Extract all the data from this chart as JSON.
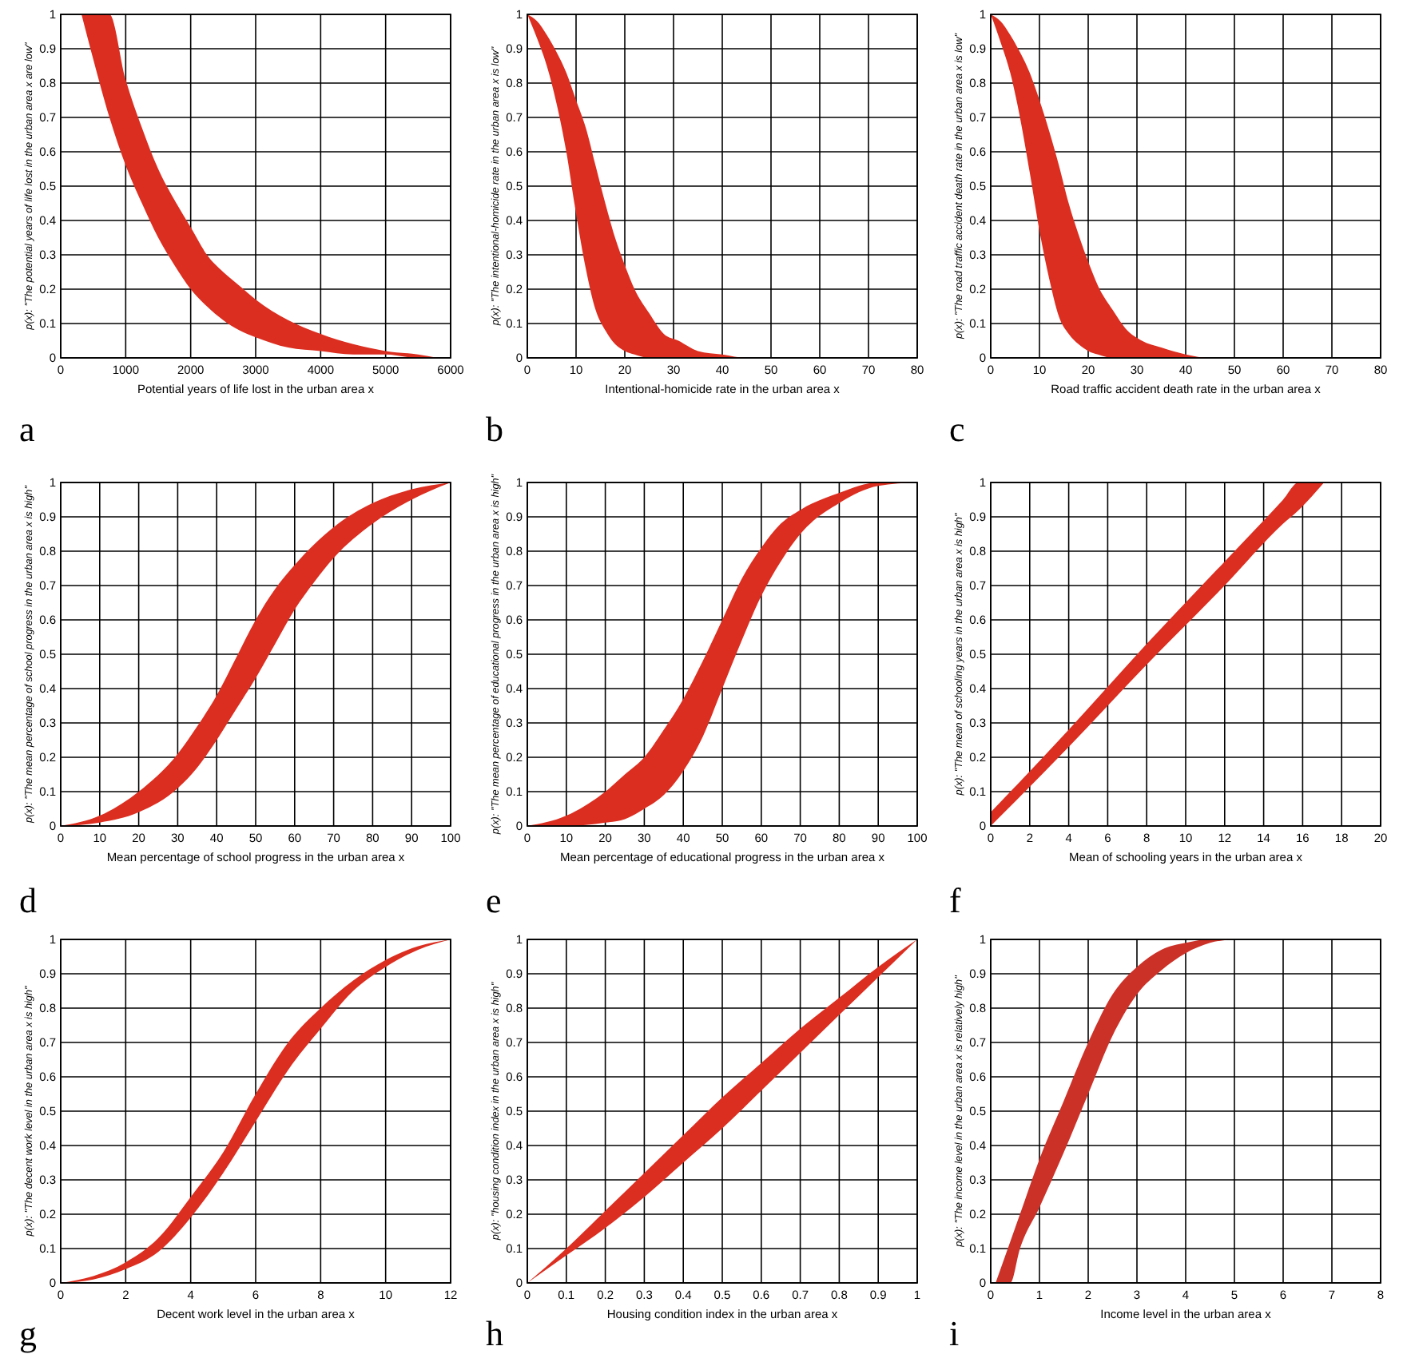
{
  "chart_data": [
    {
      "type": "line",
      "xlabel": "Potential years of life lost in the urban area x",
      "ylabel": "p(x): \"The potential years of life lost in the urban area x are low\"",
      "annotations": [
        "a"
      ],
      "xlim": [
        0,
        6000
      ],
      "xticks": [
        0,
        1000,
        2000,
        3000,
        4000,
        5000,
        6000
      ],
      "ylim": [
        0,
        1
      ],
      "yticks": [
        0,
        0.1,
        0.2,
        0.3,
        0.4,
        0.5,
        0.6,
        0.7,
        0.8,
        0.9,
        1
      ],
      "grid": true,
      "series": [
        {
          "color": "#dc2e20",
          "x": [
            320,
            500,
            750,
            1000,
            1250,
            1500,
            1750,
            2000,
            2250,
            2500,
            2750,
            3000,
            3500,
            4000,
            4500,
            5000,
            5500,
            5800
          ],
          "values": [
            null,
            null,
            null,
            null,
            null,
            null,
            null,
            null,
            null,
            null,
            null,
            null,
            null,
            null,
            null,
            null,
            null,
            null
          ],
          "lower": [
            1,
            0.87,
            0.7,
            0.56,
            0.45,
            0.35,
            0.27,
            0.2,
            0.15,
            0.11,
            0.08,
            0.06,
            0.03,
            0.02,
            0.01,
            0.01,
            0,
            0
          ],
          "upper": [
            1,
            1,
            1,
            0.81,
            0.67,
            0.55,
            0.46,
            0.38,
            0.3,
            0.25,
            0.21,
            0.17,
            0.11,
            0.07,
            0.04,
            0.02,
            0.01,
            0
          ]
        }
      ]
    },
    {
      "type": "line",
      "xlabel": "Intentional-homicide rate in the urban area x",
      "ylabel": "p(x): \"The intentional-homicide rate in the urban area x is low\"",
      "annotations": [
        "b"
      ],
      "xlim": [
        0,
        80
      ],
      "xticks": [
        0,
        10,
        20,
        30,
        40,
        50,
        60,
        70,
        80
      ],
      "ylim": [
        0,
        1
      ],
      "yticks": [
        0,
        0.1,
        0.2,
        0.3,
        0.4,
        0.5,
        0.6,
        0.7,
        0.8,
        0.9,
        1
      ],
      "grid": true,
      "series": [
        {
          "color": "#dc2e20",
          "x": [
            0,
            2,
            4,
            6,
            8,
            10,
            12,
            14,
            16,
            18,
            20,
            22,
            25,
            28,
            31,
            35,
            40,
            45,
            50
          ],
          "values": [
            null,
            null,
            null,
            null,
            null,
            null,
            null,
            null,
            null,
            null,
            null,
            null,
            null,
            null,
            null,
            null,
            null,
            null,
            null
          ],
          "lower": [
            1,
            0.93,
            0.85,
            0.74,
            0.6,
            0.42,
            0.26,
            0.14,
            0.08,
            0.04,
            0.02,
            0.01,
            0,
            0,
            0,
            0,
            0,
            0,
            0
          ],
          "upper": [
            1,
            0.98,
            0.94,
            0.89,
            0.83,
            0.75,
            0.67,
            0.56,
            0.45,
            0.35,
            0.27,
            0.2,
            0.13,
            0.07,
            0.05,
            0.02,
            0.01,
            0,
            0
          ]
        }
      ]
    },
    {
      "type": "line",
      "xlabel": "Road traffic accident death rate in the urban area x",
      "ylabel": "p(x): \"The road traffic accident death rate in the urban area x is low\"",
      "annotations": [
        "c"
      ],
      "xlim": [
        0,
        80
      ],
      "xticks": [
        0,
        10,
        20,
        30,
        40,
        50,
        60,
        70,
        80
      ],
      "ylim": [
        0,
        1
      ],
      "yticks": [
        0,
        0.1,
        0.2,
        0.3,
        0.4,
        0.5,
        0.6,
        0.7,
        0.8,
        0.9,
        1
      ],
      "grid": true,
      "series": [
        {
          "color": "#dc2e20",
          "x": [
            0,
            2,
            4,
            6,
            8,
            10,
            12,
            14,
            16,
            18,
            20,
            22,
            25,
            28,
            31,
            35,
            40,
            45,
            50
          ],
          "values": [
            null,
            null,
            null,
            null,
            null,
            null,
            null,
            null,
            null,
            null,
            null,
            null,
            null,
            null,
            null,
            null,
            null,
            null,
            null
          ],
          "lower": [
            1,
            0.92,
            0.83,
            0.7,
            0.54,
            0.37,
            0.23,
            0.12,
            0.07,
            0.04,
            0.02,
            0.01,
            0,
            0,
            0,
            0,
            0,
            0,
            0
          ],
          "upper": [
            1,
            0.98,
            0.94,
            0.89,
            0.83,
            0.75,
            0.66,
            0.56,
            0.45,
            0.36,
            0.28,
            0.21,
            0.14,
            0.08,
            0.05,
            0.03,
            0.01,
            0,
            0
          ]
        }
      ]
    },
    {
      "type": "line",
      "xlabel": "Mean percentage of school progress in the urban area x",
      "ylabel": "p(x): \"The mean percentage of school progress in the urban area x is high\"",
      "annotations": [
        "d"
      ],
      "xlim": [
        0,
        100
      ],
      "xticks": [
        0,
        10,
        20,
        30,
        40,
        50,
        60,
        70,
        80,
        90,
        100
      ],
      "ylim": [
        0,
        1
      ],
      "yticks": [
        0,
        0.1,
        0.2,
        0.3,
        0.4,
        0.5,
        0.6,
        0.7,
        0.8,
        0.9,
        1
      ],
      "grid": true,
      "series": [
        {
          "color": "#dc2e20",
          "x": [
            0,
            10,
            20,
            30,
            35,
            40,
            45,
            50,
            55,
            60,
            65,
            70,
            80,
            90,
            100
          ],
          "values": [
            null,
            null,
            null,
            null,
            null,
            null,
            null,
            null,
            null,
            null,
            null,
            null,
            null,
            null,
            null
          ],
          "lower": [
            0,
            0.01,
            0.04,
            0.11,
            0.17,
            0.25,
            0.34,
            0.43,
            0.53,
            0.63,
            0.71,
            0.78,
            0.88,
            0.95,
            1
          ],
          "upper": [
            0,
            0.03,
            0.1,
            0.21,
            0.29,
            0.38,
            0.49,
            0.6,
            0.69,
            0.76,
            0.82,
            0.87,
            0.94,
            0.98,
            1
          ]
        }
      ]
    },
    {
      "type": "line",
      "xlabel": "Mean percentage of educational progress in the urban area x",
      "ylabel": "p(x): \"The mean percentage of educational progress in the urban area x is high\"",
      "annotations": [
        "e"
      ],
      "xlim": [
        0,
        100
      ],
      "xticks": [
        0,
        10,
        20,
        30,
        40,
        50,
        60,
        70,
        80,
        90,
        100
      ],
      "ylim": [
        0,
        1
      ],
      "yticks": [
        0,
        0.1,
        0.2,
        0.3,
        0.4,
        0.5,
        0.6,
        0.7,
        0.8,
        0.9,
        1
      ],
      "grid": true,
      "series": [
        {
          "color": "#dc2e20",
          "x": [
            0,
            10,
            20,
            25,
            30,
            35,
            40,
            45,
            50,
            55,
            60,
            65,
            70,
            80,
            90,
            100
          ],
          "values": [
            null,
            null,
            null,
            null,
            null,
            null,
            null,
            null,
            null,
            null,
            null,
            null,
            null,
            null,
            null,
            null
          ],
          "lower": [
            0,
            0,
            0.01,
            0.02,
            0.05,
            0.09,
            0.16,
            0.26,
            0.4,
            0.54,
            0.67,
            0.77,
            0.85,
            0.94,
            0.99,
            1
          ],
          "upper": [
            0,
            0.03,
            0.1,
            0.15,
            0.2,
            0.28,
            0.37,
            0.48,
            0.6,
            0.72,
            0.81,
            0.88,
            0.92,
            0.97,
            1,
            1
          ]
        }
      ]
    },
    {
      "type": "line",
      "xlabel": "Mean of schooling years in the urban area x",
      "ylabel": "p(x): \"The mean of schooling years in the urban area x is high\"",
      "annotations": [
        "f"
      ],
      "xlim": [
        0,
        20
      ],
      "xticks": [
        0,
        2,
        4,
        6,
        8,
        10,
        12,
        14,
        16,
        18,
        20
      ],
      "ylim": [
        0,
        1
      ],
      "yticks": [
        0,
        0.1,
        0.2,
        0.3,
        0.4,
        0.5,
        0.6,
        0.7,
        0.8,
        0.9,
        1
      ],
      "grid": true,
      "series": [
        {
          "color": "#dc2e20",
          "x": [
            0,
            4,
            8,
            12,
            15,
            15.8,
            17.1
          ],
          "values": [
            null,
            null,
            null,
            null,
            null,
            null,
            null
          ],
          "lower": [
            0,
            0.23,
            0.47,
            0.7,
            0.88,
            0.92,
            1
          ],
          "upper": [
            0.04,
            0.28,
            0.53,
            0.77,
            0.95,
            1,
            1
          ]
        }
      ]
    },
    {
      "type": "line",
      "xlabel": "Decent work level in the urban area x",
      "ylabel": "p(x): \"The decent work level in the urban area x is high\"",
      "annotations": [
        "g"
      ],
      "xlim": [
        0,
        12
      ],
      "xticks": [
        0,
        2,
        4,
        6,
        8,
        10,
        12
      ],
      "ylim": [
        0,
        1
      ],
      "yticks": [
        0,
        0.1,
        0.2,
        0.3,
        0.4,
        0.5,
        0.6,
        0.7,
        0.8,
        0.9,
        1
      ],
      "grid": true,
      "series": [
        {
          "color": "#dc2e20",
          "x": [
            0,
            1,
            2,
            3,
            4,
            5,
            6,
            7,
            8,
            9,
            10,
            11,
            12
          ],
          "values": [
            null,
            null,
            null,
            null,
            null,
            null,
            null,
            null,
            null,
            null,
            null,
            null,
            null
          ],
          "lower": [
            0,
            0.01,
            0.04,
            0.09,
            0.19,
            0.32,
            0.47,
            0.62,
            0.74,
            0.85,
            0.92,
            0.97,
            1
          ],
          "upper": [
            0,
            0.02,
            0.06,
            0.13,
            0.25,
            0.38,
            0.55,
            0.7,
            0.8,
            0.88,
            0.94,
            0.98,
            1
          ]
        }
      ]
    },
    {
      "type": "line",
      "xlabel": "Housing condition index in the urban area x",
      "ylabel": "p(x): \"housing condition index in the urban area x is high\"",
      "annotations": [
        "h"
      ],
      "xlim": [
        0,
        1
      ],
      "xticks": [
        0,
        0.1,
        0.2,
        0.3,
        0.4,
        0.5,
        0.6,
        0.7,
        0.8,
        0.9,
        1
      ],
      "ylim": [
        0,
        1
      ],
      "yticks": [
        0,
        0.1,
        0.2,
        0.3,
        0.4,
        0.5,
        0.6,
        0.7,
        0.8,
        0.9,
        1
      ],
      "grid": true,
      "series": [
        {
          "color": "#dc2e20",
          "x": [
            0,
            0.1,
            0.2,
            0.3,
            0.4,
            0.5,
            0.6,
            0.7,
            0.8,
            0.9,
            1
          ],
          "values": [
            null,
            null,
            null,
            null,
            null,
            null,
            null,
            null,
            null,
            null,
            null
          ],
          "lower": [
            0,
            0.08,
            0.16,
            0.25,
            0.35,
            0.45,
            0.56,
            0.67,
            0.78,
            0.89,
            1
          ],
          "upper": [
            0,
            0.1,
            0.21,
            0.32,
            0.43,
            0.54,
            0.64,
            0.74,
            0.83,
            0.92,
            1
          ]
        }
      ]
    },
    {
      "type": "line",
      "xlabel": "Income level in the urban area x",
      "ylabel": "p(x): \"The income level in the urban area x is relatively high\"",
      "annotations": [
        "i"
      ],
      "xlim": [
        0,
        8
      ],
      "xticks": [
        0,
        1,
        2,
        3,
        4,
        5,
        6,
        7,
        8
      ],
      "ylim": [
        0,
        1
      ],
      "yticks": [
        0,
        0.1,
        0.2,
        0.3,
        0.4,
        0.5,
        0.6,
        0.7,
        0.8,
        0.9,
        1
      ],
      "grid": true,
      "series": [
        {
          "color": "#cc3128",
          "x": [
            0.1,
            0.4,
            0.6,
            1,
            1.5,
            2,
            2.5,
            3,
            3.5,
            4,
            4.5,
            5
          ],
          "values": [
            null,
            null,
            null,
            null,
            null,
            null,
            null,
            null,
            null,
            null,
            null,
            null
          ],
          "lower": [
            0,
            0,
            0.1,
            0.22,
            0.38,
            0.55,
            0.72,
            0.84,
            0.91,
            0.96,
            0.99,
            1
          ],
          "upper": [
            0,
            0.12,
            0.2,
            0.36,
            0.53,
            0.7,
            0.84,
            0.92,
            0.97,
            0.99,
            1,
            1
          ]
        }
      ]
    }
  ]
}
